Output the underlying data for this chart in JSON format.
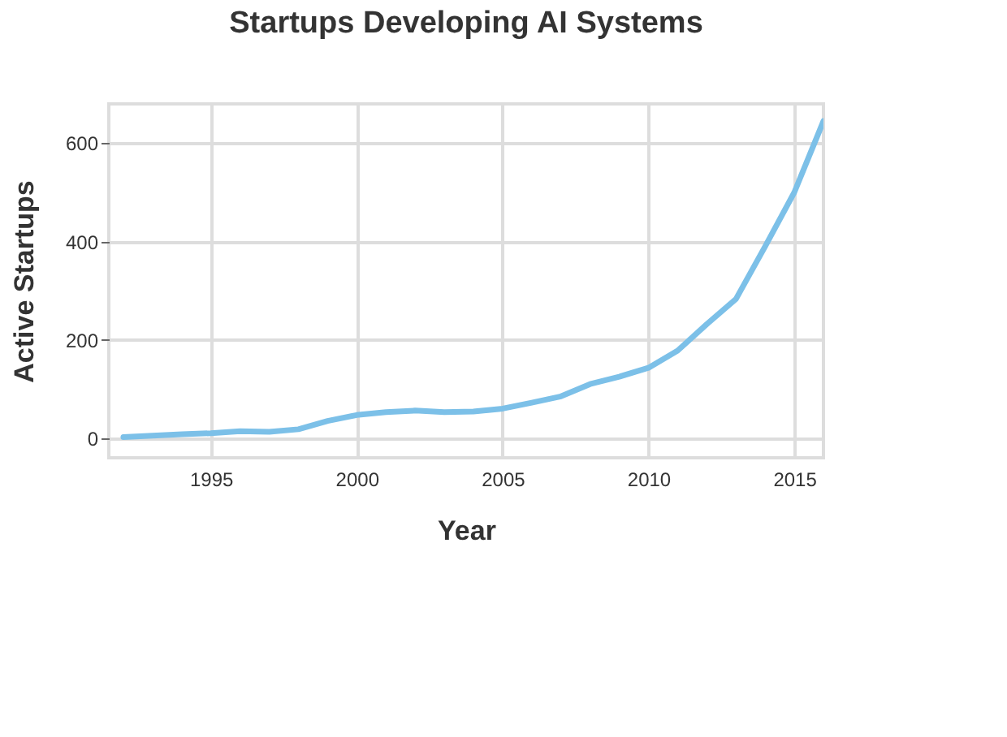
{
  "chart_data": {
    "type": "line",
    "title": "Startups Developing AI Systems",
    "xlabel": "Year",
    "ylabel": "Active Startups",
    "x": [
      1992,
      1993,
      1994,
      1995,
      1996,
      1997,
      1998,
      1999,
      2000,
      2001,
      2002,
      2003,
      2004,
      2005,
      2006,
      2007,
      2008,
      2009,
      2010,
      2011,
      2012,
      2013,
      2014,
      2015,
      2016
    ],
    "series": [
      {
        "color": "#7cc0e8",
        "values": [
          2,
          5,
          8,
          10,
          14,
          13,
          18,
          35,
          47,
          53,
          56,
          53,
          54,
          60,
          72,
          85,
          110,
          125,
          143,
          178,
          232,
          283,
          390,
          500,
          645
        ]
      }
    ],
    "xlim": [
      1991.5,
      2016
    ],
    "xticks": [
      1995,
      2000,
      2005,
      2010,
      2015
    ],
    "ylim": [
      -40,
      680
    ],
    "yticks": [
      0,
      200,
      400,
      600
    ],
    "grid": true,
    "legend": false,
    "marker": "none",
    "line_style": "solid"
  }
}
